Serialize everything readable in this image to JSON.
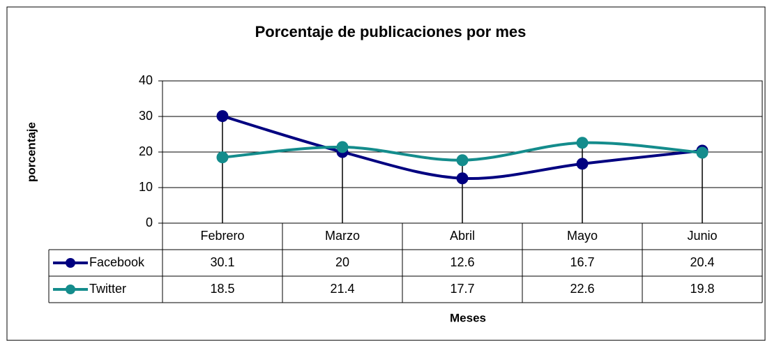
{
  "chart_data": {
    "type": "line",
    "title": "Porcentaje de publicaciones por mes",
    "y_label": "porcentaje",
    "x_label": "Meses",
    "categories": [
      "Febrero",
      "Marzo",
      "Abril",
      "Mayo",
      "Junio"
    ],
    "series": [
      {
        "name": "Facebook",
        "color": "#000080",
        "values": [
          30.1,
          20,
          12.6,
          16.7,
          20.4
        ]
      },
      {
        "name": "Twitter",
        "color": "#148c8c",
        "values": [
          18.5,
          21.4,
          17.7,
          22.6,
          19.8
        ]
      }
    ],
    "ylim": [
      0,
      40
    ],
    "yticks": [
      0,
      10,
      20,
      30,
      40
    ],
    "grid": true
  }
}
